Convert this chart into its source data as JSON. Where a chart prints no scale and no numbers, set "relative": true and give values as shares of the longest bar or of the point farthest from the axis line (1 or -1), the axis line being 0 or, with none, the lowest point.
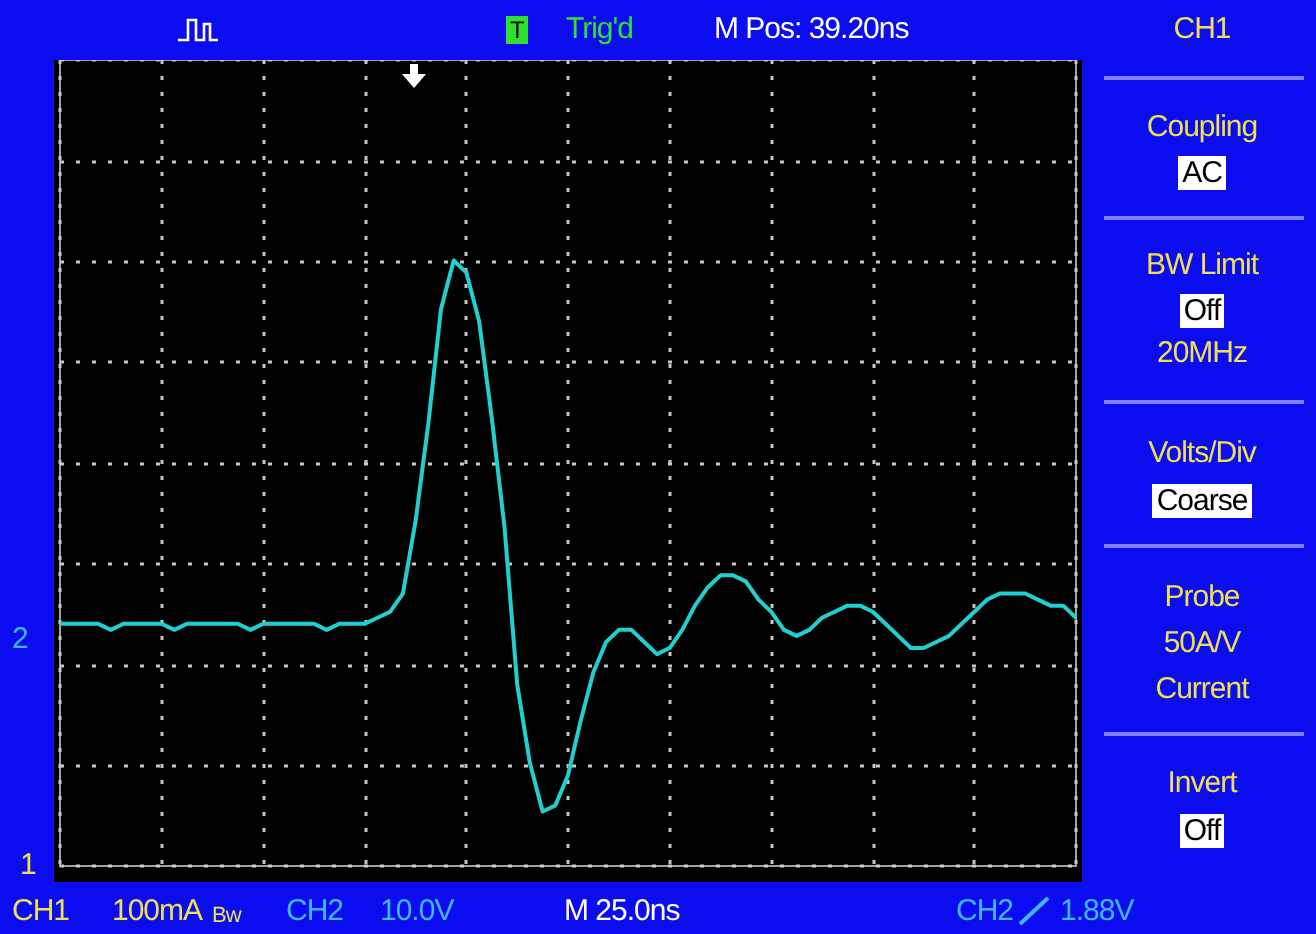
{
  "chart_data": {
    "type": "line",
    "relative": true,
    "grid": true,
    "marker": "none",
    "line_style": "solid",
    "annotations": [
      "Trig'd",
      "M Pos: 39.20ns",
      "CH1",
      "Coupling",
      "AC",
      "BW Limit",
      "Off",
      "20MHz",
      "Volts/Div",
      "Coarse",
      "Probe",
      "50A/V",
      "Current",
      "Invert",
      "Off",
      "CH1",
      "100mA",
      "CH2",
      "10.0V",
      "M 25.0ns",
      "CH2",
      "1.88V",
      "2",
      "1",
      "T",
      "Bw"
    ],
    "categories": [
      null,
      null,
      null,
      null,
      null,
      null,
      null,
      null,
      null,
      null,
      null,
      null,
      null,
      null,
      null,
      null,
      null,
      null,
      null,
      null,
      null,
      null,
      null,
      null,
      null,
      null,
      null,
      null,
      null,
      null,
      null,
      null,
      null,
      null,
      null,
      null,
      null,
      null,
      null,
      null,
      null,
      null,
      null,
      null,
      null,
      null,
      null,
      null,
      null,
      null,
      null,
      null,
      null,
      null,
      null,
      null,
      null,
      null,
      null,
      null,
      null,
      null,
      null,
      null,
      null,
      null,
      null,
      null,
      null,
      null,
      null,
      null,
      null,
      null,
      null,
      null,
      null,
      null,
      null,
      null,
      null
    ],
    "series": [
      {
        "color": "#20d0d0",
        "values": [
          0.4,
          0.4,
          0.4,
          0.4,
          0.39,
          0.4,
          0.4,
          0.4,
          0.4,
          0.39,
          0.4,
          0.4,
          0.4,
          0.4,
          0.4,
          0.39,
          0.4,
          0.4,
          0.4,
          0.4,
          0.4,
          0.39,
          0.4,
          0.4,
          0.4,
          0.41,
          0.42,
          0.45,
          0.57,
          0.73,
          0.92,
          1,
          0.98,
          0.9,
          0.74,
          0.56,
          0.3,
          0.17,
          0.09,
          0.1,
          0.15,
          0.24,
          0.32,
          0.37,
          0.39,
          0.39,
          0.37,
          0.35,
          0.36,
          0.39,
          0.43,
          0.46,
          0.48,
          0.48,
          0.47,
          0.44,
          0.42,
          0.39,
          0.38,
          0.39,
          0.41,
          0.42,
          0.43,
          0.43,
          0.42,
          0.4,
          0.38,
          0.36,
          0.36,
          0.37,
          0.38,
          0.4,
          0.42,
          0.44,
          0.45,
          0.45,
          0.45,
          0.44,
          0.43,
          0.43,
          0.41
        ]
      }
    ]
  }
}
